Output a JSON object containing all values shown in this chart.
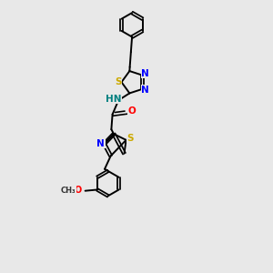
{
  "background_color": "#e8e8e8",
  "atom_color_N": "#0000ff",
  "atom_color_S": "#ccaa00",
  "atom_color_O": "#ff0000",
  "atom_color_C": "#000000",
  "atom_color_NH": "#008080",
  "figsize": [
    3.0,
    3.0
  ],
  "dpi": 100,
  "xlim": [
    -2.5,
    3.5
  ],
  "ylim": [
    -5.5,
    6.5
  ]
}
